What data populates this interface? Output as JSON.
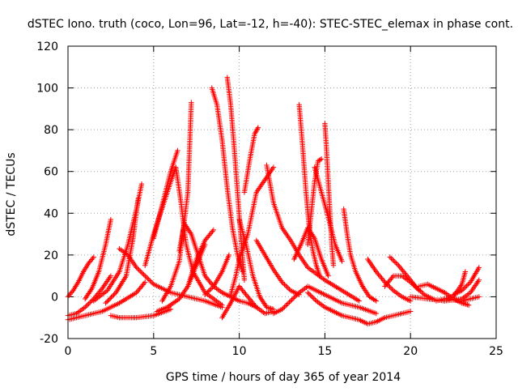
{
  "chart_data": {
    "type": "scatter",
    "title": "dSTEC Iono. truth (coco, Lon=96, Lat=-12, h=-40): STEC-STEC_elemax in phase cont.",
    "xlabel": "GPS time / hours of day 365 of year 2014",
    "ylabel": "dSTEC  / TECUs",
    "xlim": [
      0,
      25
    ],
    "ylim": [
      -20,
      120
    ],
    "xticks": [
      0,
      5,
      10,
      15,
      20,
      25
    ],
    "yticks": [
      -20,
      0,
      20,
      40,
      60,
      80,
      100,
      120
    ],
    "grid": true,
    "marker": "+",
    "series_color": "#ff0000",
    "series": [
      {
        "x": [
          0.0,
          0.3,
          0.6,
          0.9,
          1.2,
          1.5
        ],
        "y": [
          0,
          3,
          7,
          12,
          16,
          19
        ]
      },
      {
        "x": [
          0.0,
          0.5,
          1.0,
          1.5,
          2.0,
          2.5
        ],
        "y": [
          -9,
          -8,
          -5,
          -1,
          4,
          10
        ]
      },
      {
        "x": [
          0.0,
          1.0,
          2.0,
          3.0,
          4.0,
          4.5
        ],
        "y": [
          -11,
          -9,
          -7,
          -3,
          2,
          7
        ]
      },
      {
        "x": [
          1.0,
          1.4,
          1.8,
          2.2,
          2.5
        ],
        "y": [
          -1,
          4,
          12,
          25,
          37
        ]
      },
      {
        "x": [
          1.5,
          2.3,
          3.0,
          3.5,
          4.0,
          4.3
        ],
        "y": [
          -2,
          3,
          12,
          25,
          42,
          54
        ]
      },
      {
        "x": [
          2.2,
          2.8,
          3.4,
          3.8,
          4.1
        ],
        "y": [
          -3,
          2,
          10,
          28,
          47
        ]
      },
      {
        "x": [
          2.5,
          3.0,
          4.0,
          5.0,
          6.0
        ],
        "y": [
          -9,
          -10,
          -10,
          -9,
          -6
        ]
      },
      {
        "x": [
          3.0,
          3.5,
          4.0,
          5.0,
          6.0,
          7.0,
          8.0,
          9.0
        ],
        "y": [
          23,
          20,
          14,
          6,
          2,
          0,
          -2,
          -5
        ]
      },
      {
        "x": [
          4.5,
          5.0,
          5.6,
          6.0,
          6.3,
          6.6,
          6.9,
          7.3,
          8.0,
          9.0
        ],
        "y": [
          15,
          30,
          45,
          55,
          62,
          45,
          25,
          12,
          2,
          -4
        ]
      },
      {
        "x": [
          5.0,
          5.5,
          6.0,
          6.4
        ],
        "y": [
          28,
          44,
          60,
          70
        ]
      },
      {
        "x": [
          5.2,
          5.8,
          6.5,
          7.0,
          7.5,
          8.0
        ],
        "y": [
          -7,
          -5,
          -1,
          5,
          15,
          25
        ]
      },
      {
        "x": [
          5.5,
          6.0,
          6.5,
          7.0,
          7.2
        ],
        "y": [
          -2,
          5,
          17,
          50,
          93
        ]
      },
      {
        "x": [
          6.5,
          6.8,
          7.2,
          7.6,
          8.0,
          8.5,
          9.0,
          9.5,
          10.0,
          10.5,
          11.0
        ],
        "y": [
          22,
          35,
          30,
          20,
          10,
          5,
          2,
          0,
          -2,
          -3,
          -5
        ]
      },
      {
        "x": [
          7.0,
          7.5,
          8.0,
          8.5
        ],
        "y": [
          5,
          18,
          27,
          32
        ]
      },
      {
        "x": [
          8.4,
          8.7,
          9.0,
          9.3,
          9.6,
          9.9,
          10.2
        ],
        "y": [
          100,
          92,
          75,
          52,
          33,
          20,
          12
        ]
      },
      {
        "x": [
          8.0,
          8.5,
          9.0,
          9.4
        ],
        "y": [
          1,
          5,
          12,
          20
        ]
      },
      {
        "x": [
          9.3,
          9.5,
          9.7,
          9.9,
          10.1,
          10.3
        ],
        "y": [
          105,
          92,
          72,
          50,
          28,
          8
        ]
      },
      {
        "x": [
          9.5,
          9.8,
          10.0,
          10.5,
          11.0,
          12.0
        ],
        "y": [
          1,
          10,
          18,
          30,
          50,
          62
        ]
      },
      {
        "x": [
          9.0,
          9.5,
          10.0,
          10.5,
          11.0,
          11.5,
          12.0
        ],
        "y": [
          -10,
          -3,
          5,
          0,
          -5,
          -8,
          -7
        ]
      },
      {
        "x": [
          10.3,
          10.6,
          10.9,
          11.1
        ],
        "y": [
          50,
          65,
          78,
          81
        ]
      },
      {
        "x": [
          10.0,
          10.4,
          10.8,
          11.2,
          11.6,
          12.0
        ],
        "y": [
          37,
          25,
          10,
          0,
          -5,
          -6
        ]
      },
      {
        "x": [
          11.0,
          11.5,
          12.0,
          12.5,
          13.0,
          13.5
        ],
        "y": [
          27,
          20,
          13,
          7,
          3,
          1
        ]
      },
      {
        "x": [
          11.6,
          12.0,
          12.5,
          13.0,
          13.5,
          14.0,
          15.0,
          16.0,
          17.0
        ],
        "y": [
          63,
          45,
          33,
          27,
          20,
          14,
          8,
          3,
          -2
        ]
      },
      {
        "x": [
          12.0,
          12.5,
          13.0,
          13.5,
          14.0,
          15.0,
          16.0,
          17.0,
          18.0
        ],
        "y": [
          -8,
          -6,
          -2,
          2,
          5,
          1,
          -3,
          -5,
          -8
        ]
      },
      {
        "x": [
          13.5,
          13.7,
          13.9,
          14.1,
          14.3,
          14.5,
          14.7
        ],
        "y": [
          92,
          72,
          50,
          32,
          22,
          15,
          10
        ]
      },
      {
        "x": [
          13.2,
          13.6,
          14.0,
          14.4,
          14.8,
          15.2
        ],
        "y": [
          18,
          25,
          33,
          28,
          18,
          10
        ]
      },
      {
        "x": [
          14.0,
          14.2,
          14.4,
          14.6,
          14.8
        ],
        "y": [
          25,
          40,
          55,
          65,
          66
        ]
      },
      {
        "x": [
          14.4,
          14.8,
          15.2,
          15.6,
          16.0
        ],
        "y": [
          62,
          50,
          38,
          25,
          17
        ]
      },
      {
        "x": [
          15.0,
          15.1,
          15.2,
          15.3,
          15.4,
          15.5
        ],
        "y": [
          83,
          70,
          55,
          40,
          25,
          15
        ]
      },
      {
        "x": [
          16.1,
          16.3,
          16.5,
          16.8,
          17.2,
          17.6,
          18.0
        ],
        "y": [
          42,
          30,
          20,
          12,
          5,
          0,
          -2
        ]
      },
      {
        "x": [
          14.0,
          14.5,
          15.0,
          15.5,
          16.0,
          16.5,
          17.0,
          17.5,
          18.0,
          18.5,
          19.0,
          20.0
        ],
        "y": [
          2,
          -2,
          -5,
          -7,
          -9,
          -10,
          -11,
          -13,
          -12,
          -10,
          -9,
          -7
        ]
      },
      {
        "x": [
          17.5,
          18.0,
          18.5,
          19.0,
          19.5,
          20.0
        ],
        "y": [
          18,
          12,
          7,
          3,
          0,
          -2
        ]
      },
      {
        "x": [
          18.8,
          19.3,
          19.8,
          20.3,
          20.8,
          21.3
        ],
        "y": [
          19,
          15,
          10,
          5,
          1,
          -1
        ]
      },
      {
        "x": [
          18.5,
          19.0,
          19.5,
          20.0,
          20.5
        ],
        "y": [
          5,
          10,
          10,
          7,
          3
        ]
      },
      {
        "x": [
          20.5,
          21.0,
          21.5,
          22.0,
          22.5,
          23.0,
          23.4
        ],
        "y": [
          5,
          6,
          4,
          2,
          -1,
          -3,
          -4
        ]
      },
      {
        "x": [
          20.0,
          21.0,
          22.0,
          23.0,
          23.5,
          24.0
        ],
        "y": [
          0,
          -1,
          -2,
          -1,
          2,
          8
        ]
      },
      {
        "x": [
          22.5,
          23.0,
          23.5,
          24.0
        ],
        "y": [
          1,
          3,
          7,
          14
        ]
      },
      {
        "x": [
          21.5,
          22.5,
          23.0,
          23.2
        ],
        "y": [
          -2,
          0,
          6,
          12
        ]
      },
      {
        "x": [
          22.0,
          23.0,
          24.0
        ],
        "y": [
          -1,
          -2,
          0
        ]
      }
    ]
  }
}
